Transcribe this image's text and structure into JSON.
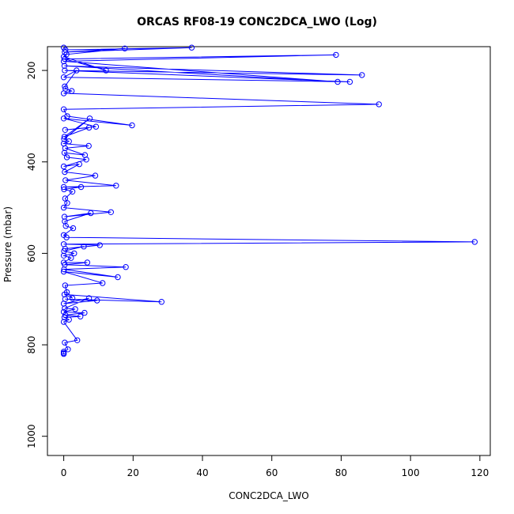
{
  "chart_data": {
    "type": "line",
    "title": "ORCAS RF08-19 CONC2DCA_LWO (Log)",
    "xlabel": "CONC2DCA_LWO",
    "ylabel": "Pressure (mbar)",
    "xlim": [
      -4.7,
      123.0
    ],
    "ylim": [
      1042,
      148
    ],
    "y_inverted": true,
    "x_ticks": [
      0,
      20,
      40,
      60,
      80,
      100,
      120
    ],
    "y_ticks": [
      200,
      400,
      600,
      800,
      1000
    ],
    "grid": false,
    "legend": "none",
    "marker": "open-circle",
    "color": "#0000ff",
    "series": [
      {
        "x": [
          0,
          0.5,
          36.9,
          0.3,
          17.6,
          0.8,
          0,
          12.2,
          0.3,
          78.5,
          0,
          79,
          0.2,
          86,
          0.3,
          82.5,
          0,
          3.7,
          0.3,
          0.5,
          2.3,
          0,
          90.9,
          0,
          1,
          19.7,
          0,
          9.3,
          0.4,
          7.3,
          0.2,
          7.5,
          0.1,
          1.5,
          0,
          7.2,
          0.4,
          6.1,
          0.2,
          0.9,
          6.5,
          0,
          4.5,
          0.3,
          9.1,
          0.5,
          15.1,
          0,
          5,
          0.1,
          2.5,
          0.4,
          1,
          0,
          13.6,
          0.2,
          7.8,
          0.3,
          0.6,
          2.7,
          0,
          0.8,
          118.5,
          0,
          10.4,
          0.4,
          5.8,
          0.1,
          3,
          0,
          2.1,
          0,
          6.8,
          0.3,
          17.9,
          0.1,
          15.6,
          0,
          11.2,
          0.4,
          0.9,
          2.5,
          0.2,
          28.2,
          0.4,
          9.6,
          0,
          7.3,
          0.3,
          3.3,
          0,
          6,
          0.5,
          4.8,
          0.2,
          1.5,
          0,
          3.9,
          0.3,
          1.2,
          0,
          0,
          0
        ],
        "y": [
          150,
          155,
          150,
          160,
          152,
          165,
          170,
          200,
          175,
          166,
          180,
          225,
          190,
          210,
          200,
          225,
          215,
          200,
          235,
          240,
          245,
          250,
          274,
          285,
          300,
          320,
          305,
          323,
          330,
          325,
          345,
          305,
          350,
          355,
          360,
          365,
          370,
          385,
          380,
          390,
          395,
          410,
          405,
          422,
          430,
          440,
          452,
          455,
          455,
          460,
          465,
          480,
          490,
          500,
          510,
          520,
          512,
          530,
          540,
          545,
          560,
          565,
          575,
          580,
          582,
          590,
          585,
          595,
          600,
          605,
          610,
          620,
          620,
          625,
          630,
          635,
          652,
          640,
          665,
          670,
          685,
          698,
          690,
          706,
          700,
          703,
          710,
          698,
          720,
          722,
          728,
          730,
          735,
          738,
          740,
          745,
          750,
          790,
          795,
          810,
          815,
          818,
          820
        ]
      }
    ]
  }
}
